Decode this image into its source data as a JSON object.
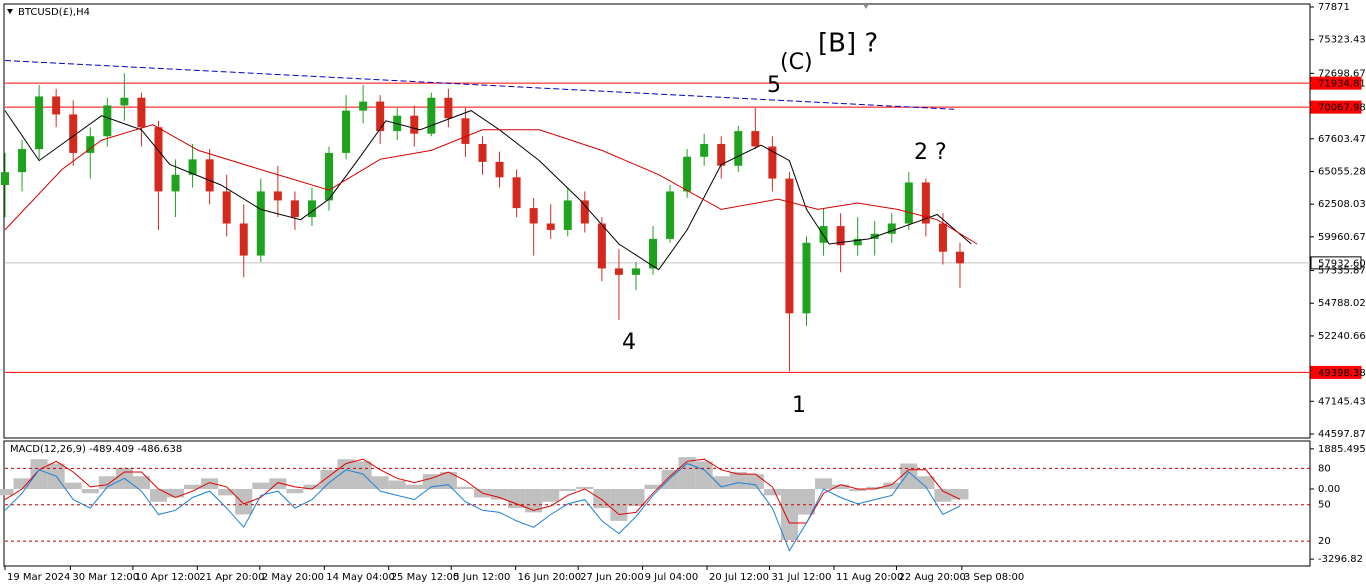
{
  "chart_data": [
    {
      "type": "candlestick",
      "title": "BTCUSD(£),H4",
      "x": [
        0,
        3,
        6,
        9,
        12,
        15,
        18,
        21,
        24,
        27,
        30,
        33,
        36,
        39,
        42,
        45,
        48,
        51,
        54,
        57,
        60,
        63,
        66,
        69,
        72,
        75,
        78,
        81,
        84,
        87,
        90,
        93,
        96,
        99,
        102,
        105,
        108,
        111,
        114,
        117,
        120,
        123,
        126,
        129,
        132,
        135,
        138,
        141,
        144,
        147,
        150,
        153,
        156,
        159,
        162,
        165,
        168
      ],
      "open": [
        64000,
        65000,
        66800,
        70900,
        69500,
        66500,
        67800,
        70200,
        70800,
        68500,
        63500,
        64800,
        66000,
        63500,
        61000,
        58500,
        63500,
        62800,
        61500,
        62800,
        66500,
        69800,
        70500,
        68200,
        69400,
        68000,
        70800,
        69200,
        67200,
        65800,
        64600,
        62200,
        61000,
        60500,
        62800,
        61000,
        57500,
        57000,
        57500,
        59800,
        63500,
        66200,
        67200,
        65500,
        68200,
        67000,
        64500,
        54000,
        59500,
        60800,
        59300,
        59800,
        60200,
        61000,
        64200,
        61000,
        58800
      ],
      "high": [
        66500,
        67500,
        71800,
        71500,
        70600,
        68500,
        70800,
        72700,
        71200,
        69000,
        66000,
        67200,
        66800,
        64800,
        62500,
        64500,
        65500,
        63500,
        63800,
        67000,
        71000,
        71800,
        71000,
        70000,
        70200,
        71200,
        71500,
        70000,
        67800,
        66600,
        65200,
        63000,
        62500,
        63800,
        63500,
        61500,
        59000,
        58000,
        60800,
        64000,
        66800,
        68000,
        67800,
        68600,
        70000,
        67800,
        65000,
        60000,
        62200,
        61800,
        61500,
        61200,
        61800,
        65000,
        64500,
        61800,
        59500
      ],
      "low": [
        61500,
        63500,
        66000,
        68500,
        65500,
        64500,
        67000,
        69000,
        67000,
        60500,
        61500,
        63800,
        62500,
        60000,
        56800,
        58000,
        61500,
        60500,
        60800,
        62000,
        66000,
        68800,
        67200,
        67500,
        67000,
        67800,
        68500,
        66200,
        64800,
        63800,
        61500,
        58500,
        59800,
        60000,
        60300,
        56500,
        53500,
        55800,
        57000,
        59500,
        63000,
        65500,
        64500,
        65000,
        66800,
        63500,
        49500,
        53000,
        58500,
        57200,
        58500,
        58500,
        59500,
        60500,
        60000,
        57800,
        56000
      ],
      "close": [
        65000,
        66800,
        70900,
        69500,
        66500,
        67800,
        70200,
        70800,
        68500,
        63500,
        64800,
        66000,
        63500,
        61000,
        58500,
        63500,
        62800,
        61500,
        62800,
        66500,
        69800,
        70500,
        68200,
        69400,
        68000,
        70800,
        69200,
        67200,
        65800,
        64600,
        62200,
        61000,
        60500,
        62800,
        61000,
        57500,
        57000,
        57500,
        59800,
        63500,
        66200,
        67200,
        65500,
        68200,
        67000,
        64500,
        54000,
        59500,
        60800,
        59300,
        59800,
        60200,
        61000,
        64200,
        61000,
        58800,
        57900
      ],
      "up_color": "#1fa31f",
      "down_color": "#d42a1e",
      "lines": [
        {
          "color": "#000000",
          "x": [
            0,
            6,
            17,
            24,
            29,
            38,
            45,
            52,
            57,
            62,
            67,
            73,
            82,
            87,
            94,
            101,
            108,
            115,
            120,
            126,
            133,
            138,
            141,
            145,
            152,
            159,
            164,
            170
          ],
          "values": [
            69800,
            65900,
            69400,
            68300,
            65600,
            64000,
            62100,
            61300,
            62900,
            65900,
            69000,
            68300,
            69800,
            68300,
            65900,
            62900,
            59400,
            57400,
            60500,
            65600,
            67100,
            65900,
            62100,
            59400,
            59800,
            60900,
            61700,
            59400
          ]
        },
        {
          "color": "#d40000",
          "x": [
            0,
            10,
            17,
            26,
            34,
            45,
            57,
            66,
            75,
            84,
            94,
            105,
            115,
            126,
            136,
            143,
            150,
            157,
            164,
            171
          ],
          "values": [
            60500,
            65200,
            67500,
            68700,
            66700,
            65200,
            63600,
            66000,
            66700,
            68300,
            68300,
            66700,
            64800,
            62100,
            62900,
            62100,
            62600,
            62100,
            61300,
            59400
          ]
        }
      ],
      "trendline": {
        "color": "#0000cc",
        "x": [
          0,
          167
        ],
        "values": [
          73700,
          69900
        ]
      },
      "levels": [
        {
          "value": 71934.81,
          "color": "#ff0000",
          "label_fill": "#ff0000",
          "label_ink": "#ffffff"
        },
        {
          "value": 70067.98,
          "color": "#ff0000",
          "label_fill": "#ff0000",
          "label_ink": "#ffffff"
        },
        {
          "value": {
            "value": 57932.6,
            "label": "57932.60"
          },
          "color": "#c0c0c0",
          "label_fill": "#ffffff",
          "label_ink": "#000000"
        },
        {
          "value": 49398.38,
          "color": "#ff0000",
          "label_fill": "#ff0000",
          "label_ink": "#ffffff"
        }
      ],
      "annotations": [
        "[B] ?",
        "(C)",
        "5",
        "2 ?",
        "4",
        "1"
      ],
      "xlim": [
        0,
        229.4
      ],
      "ylim": [
        44365,
        78026
      ],
      "yticks": [
        77871,
        75323.43,
        72698.67,
        67603.47,
        65055.28,
        62508.03,
        59960.67,
        57335.87,
        54788.02,
        52240.66,
        47145.43,
        44597.87
      ],
      "xticks": [
        {
          "value": 0,
          "label": "19 Mar 2024"
        },
        {
          "value": 11.5,
          "label": "30 Mar 12:00"
        },
        {
          "value": 22.5,
          "label": "10 Apr 12:00"
        },
        {
          "value": 33.83,
          "label": "21 Apr 20:00"
        },
        {
          "value": 44.83,
          "label": "2 May 20:00"
        },
        {
          "value": 56.17,
          "label": "14 May 04:00"
        },
        {
          "value": 67.5,
          "label": "25 May 12:00"
        },
        {
          "value": 78.5,
          "label": "5 Jun 12:00"
        },
        {
          "value": 89.83,
          "label": "16 Jun 20:00"
        },
        {
          "value": 100.83,
          "label": "27 Jun 20:00"
        },
        {
          "value": 112.17,
          "label": "9 Jul 04:00"
        },
        {
          "value": 123.5,
          "label": "20 Jul 12:00"
        },
        {
          "value": 134.5,
          "label": "31 Jul 12:00"
        },
        {
          "value": 145.83,
          "label": "11 Aug 20:00"
        },
        {
          "value": 156.83,
          "label": "22 Aug 20:00"
        },
        {
          "value": 168.33,
          "label": "3 Sep 08:00"
        }
      ]
    },
    {
      "type": "macd",
      "title": "MACD(12,26,9) -489.409 -486.638",
      "x": [
        0,
        3,
        6,
        9,
        12,
        15,
        18,
        21,
        24,
        27,
        30,
        33,
        36,
        39,
        42,
        45,
        48,
        51,
        54,
        57,
        60,
        63,
        66,
        69,
        72,
        75,
        78,
        81,
        84,
        87,
        90,
        93,
        96,
        99,
        102,
        105,
        108,
        111,
        114,
        117,
        120,
        123,
        126,
        129,
        132,
        135,
        138,
        141,
        144,
        147,
        150,
        153,
        156,
        159,
        162,
        165,
        168
      ],
      "values": [
        -300,
        500,
        1400,
        1200,
        300,
        -200,
        600,
        1000,
        600,
        -600,
        -400,
        200,
        500,
        -300,
        -1200,
        300,
        500,
        -200,
        200,
        900,
        1400,
        1300,
        600,
        400,
        200,
        700,
        800,
        100,
        -400,
        -500,
        -900,
        -1100,
        -600,
        -100,
        100,
        -900,
        -1500,
        -800,
        200,
        900,
        1500,
        1300,
        600,
        800,
        700,
        -300,
        -2400,
        -1200,
        500,
        200,
        -100,
        100,
        300,
        1200,
        600,
        -600,
        -489.409
      ],
      "color": "#c0c0c0",
      "lines": [
        {
          "color": "#e00000",
          "values": [
            -500,
            0,
            900,
            1300,
            800,
            100,
            200,
            800,
            800,
            0,
            -400,
            -100,
            300,
            100,
            -700,
            -400,
            300,
            100,
            0,
            600,
            1200,
            1400,
            900,
            500,
            300,
            500,
            800,
            400,
            -200,
            -400,
            -700,
            -1000,
            -800,
            -300,
            0,
            -500,
            -1200,
            -1100,
            -200,
            600,
            1300,
            1400,
            900,
            700,
            700,
            100,
            -1600,
            -1600,
            -200,
            200,
            0,
            0,
            200,
            900,
            900,
            -100,
            -486.638
          ]
        },
        {
          "color": "#1e7fd8",
          "values": [
            -1000,
            -200,
            900,
            600,
            -500,
            -900,
            100,
            500,
            -100,
            -1200,
            -1000,
            -400,
            -100,
            -900,
            -1800,
            -300,
            -100,
            -900,
            -500,
            300,
            900,
            700,
            -100,
            -300,
            -500,
            100,
            200,
            -600,
            -1000,
            -1100,
            -1500,
            -1800,
            -1200,
            -700,
            -500,
            -1500,
            -2100,
            -1300,
            -300,
            500,
            1200,
            900,
            100,
            300,
            200,
            -900,
            -2900,
            -1600,
            0,
            -400,
            -700,
            -500,
            -300,
            800,
            100,
            -1200,
            -800
          ]
        }
      ],
      "levels": [
        {
          "value": 970,
          "label": "80"
        },
        {
          "value": -740,
          "label": "50"
        },
        {
          "value": -2450,
          "label": "20"
        }
      ],
      "xlim": [
        0,
        229.4
      ],
      "ylim": [
        -3574,
        2209
      ],
      "yticks": [
        1885.495,
        {
          "value": 0,
          "label": "0.00"
        },
        -3296.82
      ]
    }
  ]
}
